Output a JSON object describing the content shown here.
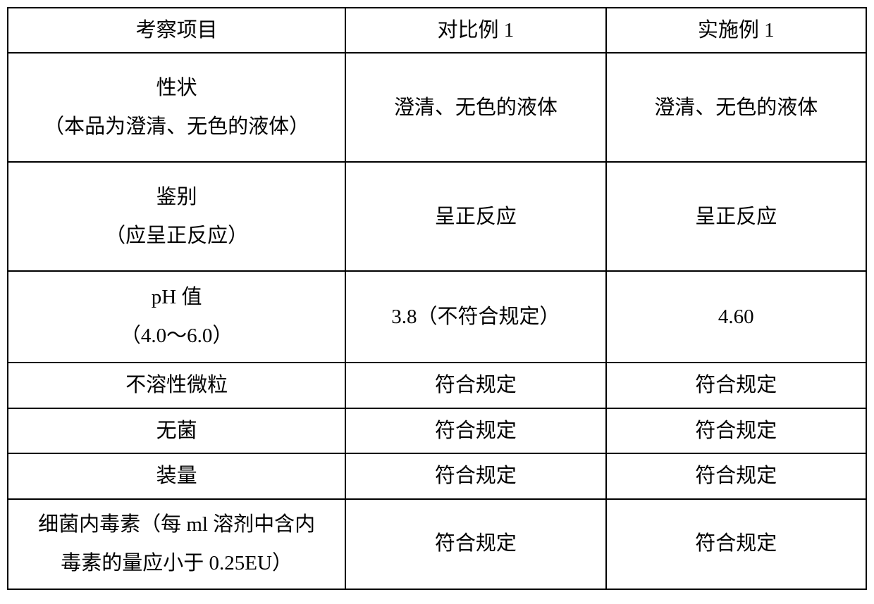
{
  "table": {
    "columns": {
      "col1_header": "考察项目",
      "col2_header": "对比例 1",
      "col3_header": "实施例 1"
    },
    "rows": {
      "appearance": {
        "label_line1": "性状",
        "label_line2": "（本品为澄清、无色的液体）",
        "col2": "澄清、无色的液体",
        "col3": "澄清、无色的液体"
      },
      "identification": {
        "label_line1": "鉴别",
        "label_line2": "（应呈正反应）",
        "col2": "呈正反应",
        "col3": "呈正反应"
      },
      "ph": {
        "label_line1": "pH 值",
        "label_line2": "（4.0～6.0）",
        "col2": "3.8（不符合规定）",
        "col3": "4.60"
      },
      "insoluble": {
        "label": "不溶性微粒",
        "col2": "符合规定",
        "col3": "符合规定"
      },
      "sterile": {
        "label": "无菌",
        "col2": "符合规定",
        "col3": "符合规定"
      },
      "volume": {
        "label": "装量",
        "col2": "符合规定",
        "col3": "符合规定"
      },
      "endotoxin": {
        "label_line1": "细菌内毒素（每 ml 溶剂中含内",
        "label_line2": "毒素的量应小于 0.25EU）",
        "col2": "符合规定",
        "col3": "符合规定"
      }
    },
    "styling": {
      "border_color": "#000000",
      "border_width": 2,
      "background_color": "#ffffff",
      "text_color": "#000000",
      "font_size": 29,
      "font_family": "SimSun"
    }
  }
}
